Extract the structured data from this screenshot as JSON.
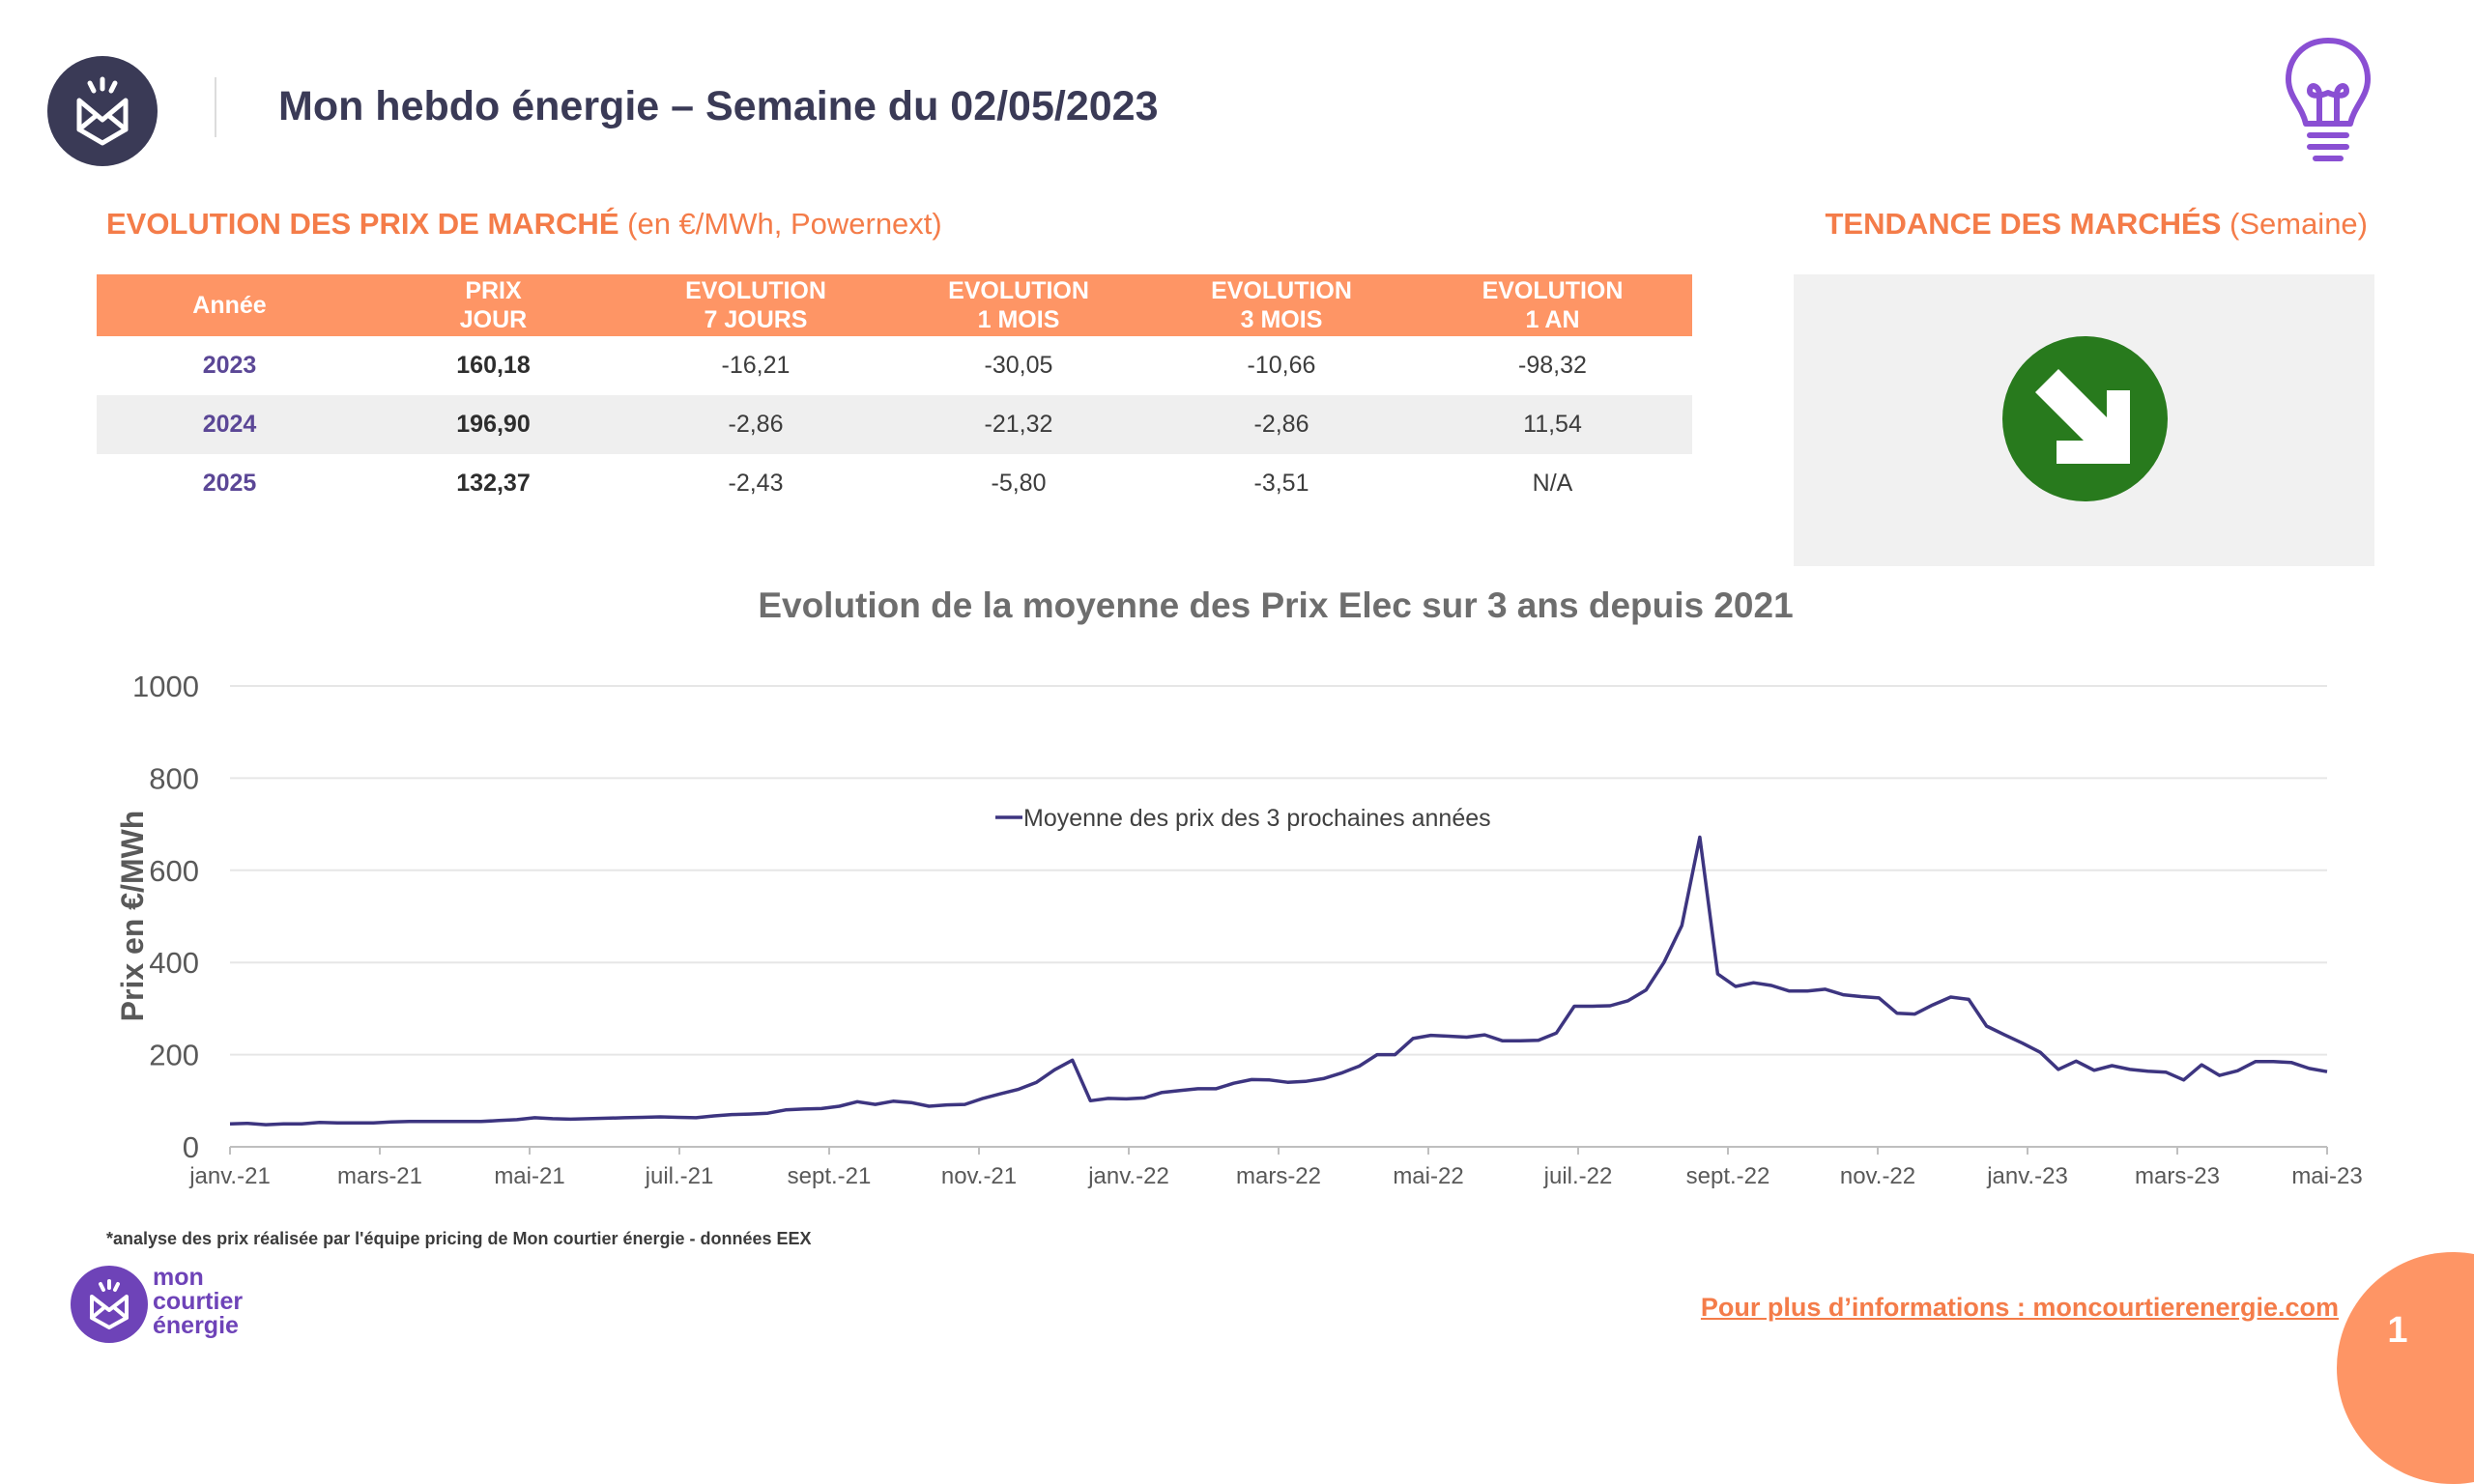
{
  "header": {
    "title": "Mon hebdo énergie – Semaine du 02/05/2023"
  },
  "market_section": {
    "title_bold": "EVOLUTION DES PRIX DE MARCHÉ",
    "title_sub": "(en €/MWh, Powernext)"
  },
  "trend_section": {
    "title_bold": "TENDANCE DES MARCHÉS",
    "title_sub": "(Semaine)",
    "trend_icon": "arrow-down-right-icon",
    "trend_color": "#287a1d"
  },
  "price_table": {
    "headers": [
      {
        "line1": "Année",
        "line2": ""
      },
      {
        "line1": "PRIX",
        "line2": "JOUR"
      },
      {
        "line1": "EVOLUTION",
        "line2": "7 JOURS"
      },
      {
        "line1": "EVOLUTION",
        "line2": "1 MOIS"
      },
      {
        "line1": "EVOLUTION",
        "line2": "3 MOIS"
      },
      {
        "line1": "EVOLUTION",
        "line2": "1 AN"
      }
    ],
    "rows": [
      {
        "year": "2023",
        "price": "160,18",
        "d7": "-16,21",
        "m1": "-30,05",
        "m3": "-10,66",
        "y1": "-98,32"
      },
      {
        "year": "2024",
        "price": "196,90",
        "d7": "-2,86",
        "m1": "-21,32",
        "m3": "-2,86",
        "y1": "11,54"
      },
      {
        "year": "2025",
        "price": "132,37",
        "d7": "-2,43",
        "m1": "-5,80",
        "m3": "-3,51",
        "y1": "N/A"
      }
    ]
  },
  "chart_data": {
    "type": "line",
    "title": "Evolution de la moyenne des Prix Elec sur 3 ans depuis 2021",
    "xlabel": "",
    "ylabel": "Prix en €/MWh",
    "ylim": [
      0,
      1000
    ],
    "yticks": [
      "0",
      "200",
      "400",
      "600",
      "800",
      "1000"
    ],
    "xticks": [
      "janv.-21",
      "mars-21",
      "mai-21",
      "juil.-21",
      "sept.-21",
      "nov.-21",
      "janv.-22",
      "mars-22",
      "mai-22",
      "juil.-22",
      "sept.-22",
      "nov.-22",
      "janv.-23",
      "mars-23",
      "mai-23"
    ],
    "grid": true,
    "legend_position": "top-center",
    "line_color": "#3d3580",
    "series": [
      {
        "name": "Moyenne des prix des 3 prochaines années",
        "values": [
          50,
          51,
          48,
          50,
          50,
          53,
          52,
          52,
          52,
          54,
          55,
          55,
          55,
          55,
          55,
          57,
          59,
          63,
          61,
          60,
          61,
          62,
          63,
          64,
          65,
          64,
          63,
          67,
          70,
          71,
          73,
          80,
          82,
          83,
          88,
          98,
          92,
          99,
          96,
          88,
          91,
          92,
          105,
          115,
          125,
          140,
          167,
          188,
          100,
          105,
          104,
          106,
          118,
          122,
          126,
          126,
          138,
          146,
          145,
          140,
          142,
          148,
          160,
          175,
          200,
          200,
          235,
          242,
          240,
          238,
          243,
          230,
          230,
          231,
          247,
          305,
          305,
          306,
          317,
          340,
          400,
          480,
          672,
          375,
          348,
          356,
          350,
          338,
          338,
          342,
          330,
          326,
          323,
          290,
          288,
          308,
          325,
          320,
          262,
          243,
          225,
          205,
          168,
          186,
          166,
          176,
          168,
          164,
          162,
          145,
          178,
          155,
          165,
          185,
          185,
          183,
          170,
          163
        ]
      }
    ]
  },
  "footnote": "*analyse des prix réalisée par l'équipe pricing de Mon courtier énergie -  données EEX",
  "brand": {
    "line1": "mon",
    "line2": "courtier",
    "line3": "énergie"
  },
  "footer": {
    "link_text": "Pour plus d’informations : moncourtierenergie.com",
    "page_number": "1"
  }
}
